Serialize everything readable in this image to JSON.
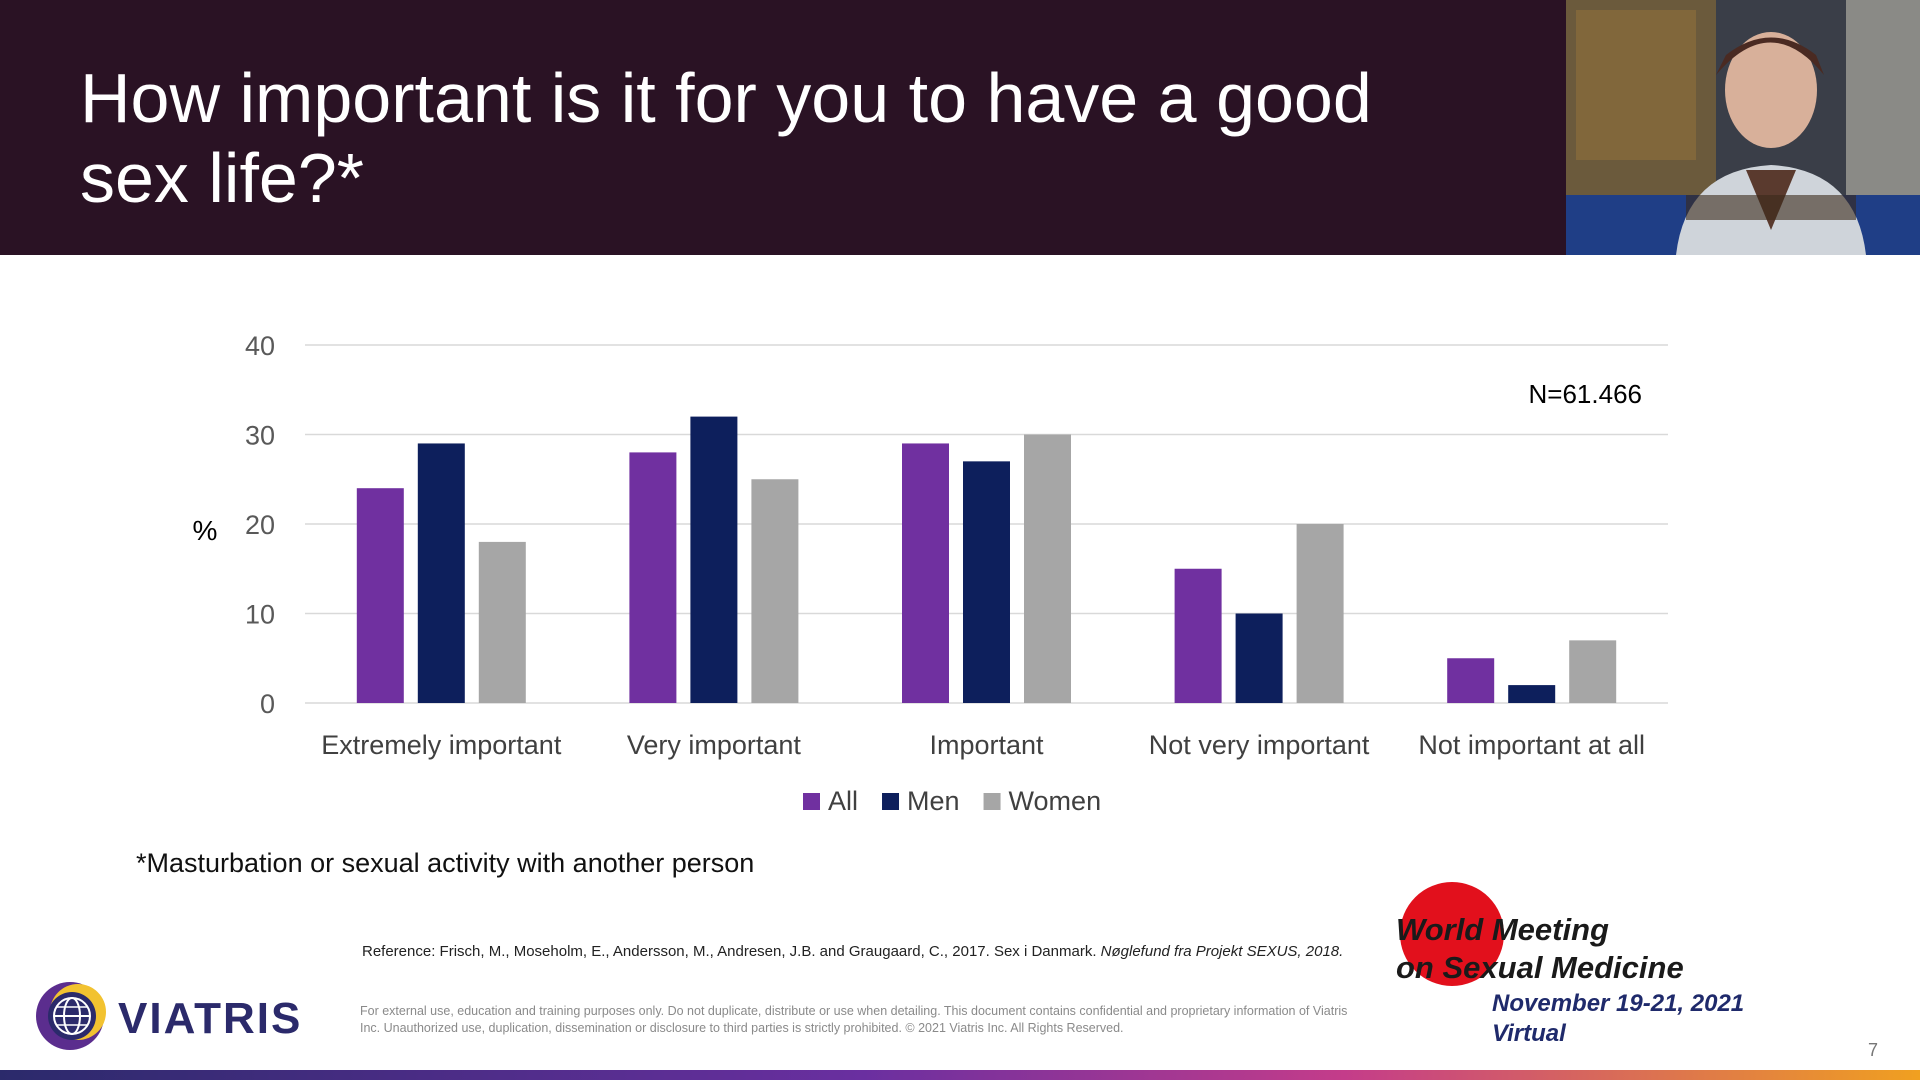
{
  "slide": {
    "title": "How important is it for you to have a good sex life?*",
    "footnote": "*Masturbation or sexual activity with another person",
    "reference": "Reference: Frisch, M., Moseholm, E., Andersson, M., Andresen, J.B. and Graugaard, C., 2017. Sex i Danmark. ",
    "reference_italic": "Nøglefund fra Projekt SEXUS, 2018.",
    "disclaimer": "For external use, education and training purposes only. Do not duplicate, distribute or use when detailing. This document contains confidential and proprietary information of Viatris Inc. Unauthorized use, duplication, dissemination or disclosure to third parties is strictly prohibited. © 2021 Viatris Inc. All Rights Reserved.",
    "page_number": "7"
  },
  "logos": {
    "viatris": "VIATRIS",
    "event_line1": "World Meeting",
    "event_line2": "on Sexual Medicine",
    "event_date": "November 19-21, 2021",
    "event_place": "Virtual"
  },
  "colors": {
    "header_bg": "#2a1224",
    "all": "#7030a0",
    "men": "#0d1f5c",
    "women": "#a6a6a6"
  },
  "chart_data": {
    "type": "bar",
    "categories": [
      "Extremely important",
      "Very important",
      "Important",
      "Not very important",
      "Not important at all"
    ],
    "series": [
      {
        "name": "All",
        "values": [
          24,
          28,
          29,
          15,
          5
        ]
      },
      {
        "name": "Men",
        "values": [
          29,
          32,
          27,
          10,
          2
        ]
      },
      {
        "name": "Women",
        "values": [
          18,
          25,
          30,
          20,
          7
        ]
      }
    ],
    "ylabel": "%",
    "ylim": [
      0,
      40
    ],
    "yticks": [
      0,
      10,
      20,
      30,
      40
    ],
    "annotation": "N=61.466",
    "legend": "bottom",
    "grid": true
  }
}
